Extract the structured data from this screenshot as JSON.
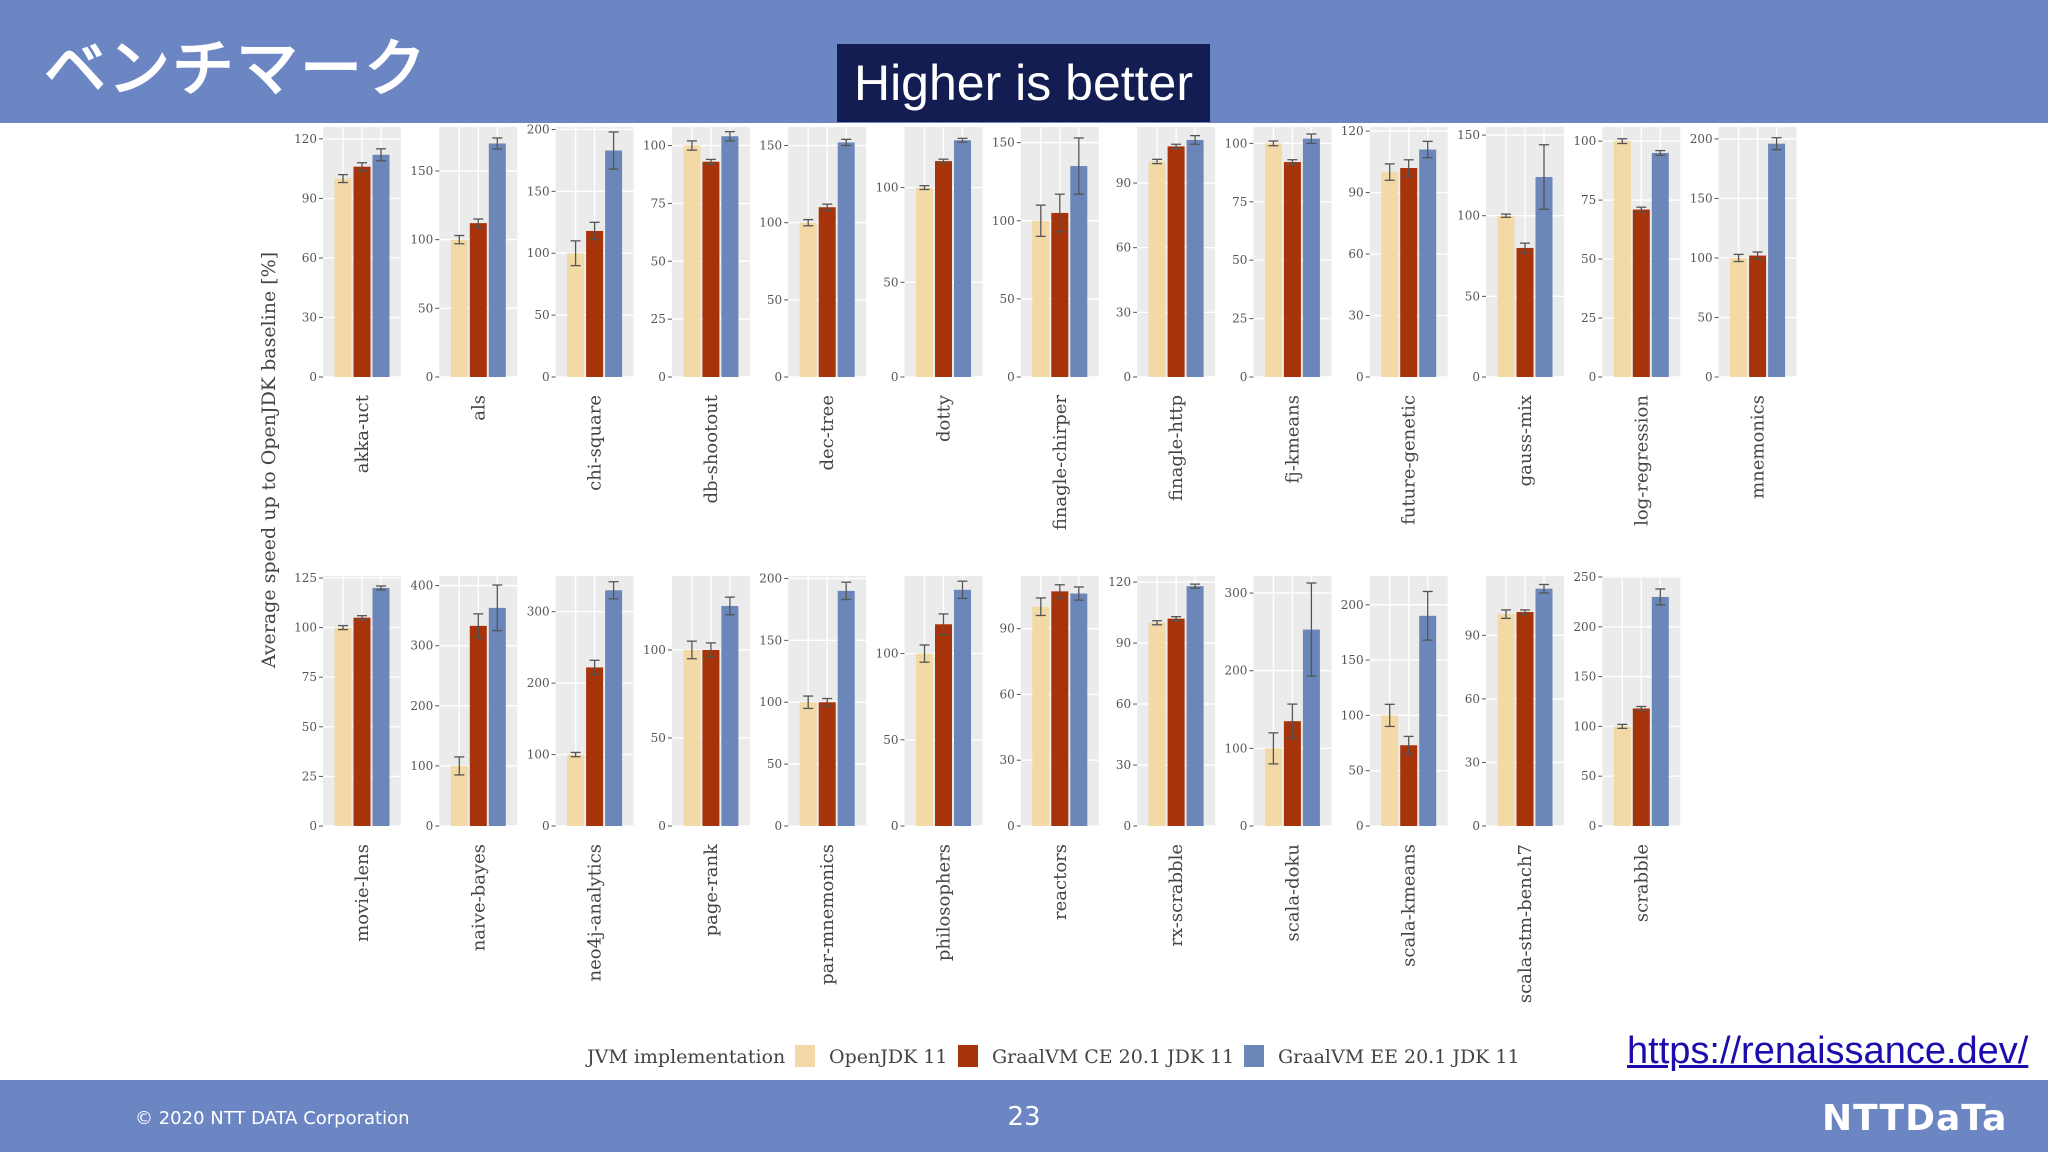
{
  "slide": {
    "title": "ベンチマーク",
    "callout": "Higher is better",
    "url": "https://renaissance.dev/",
    "copyright": "© 2020 NTT DATA Corporation",
    "page_number": "23",
    "logo": "NTTDaTa"
  },
  "colors": {
    "header": "#6b86c3",
    "callout_bg": "#131d52",
    "openjdk": "#f2d9a5",
    "graal_ce": "#a63309",
    "graal_ee": "#6b86b8",
    "panel_bg": "#ebebeb"
  },
  "chart_data": {
    "type": "bar",
    "ylabel": "Average speed up to OpenJDK baseline [%]",
    "legend": {
      "title": "JVM implementation",
      "position": "bottom",
      "entries": [
        "OpenJDK 11",
        "GraalVM CE 20.1 JDK 11",
        "GraalVM EE 20.1 JDK 11"
      ]
    },
    "panels": [
      {
        "name": "akka-uct",
        "ymax": 126,
        "ticks": [
          0,
          30,
          60,
          90,
          120
        ],
        "values": [
          100,
          106,
          112
        ],
        "err": [
          2,
          2,
          3
        ]
      },
      {
        "name": "als",
        "ymax": 182,
        "ticks": [
          0,
          50,
          100,
          150
        ],
        "values": [
          100,
          112,
          170
        ],
        "err": [
          3,
          3,
          4
        ]
      },
      {
        "name": "chi-square",
        "ymax": 202,
        "ticks": [
          0,
          50,
          100,
          150,
          200
        ],
        "values": [
          100,
          118,
          183
        ],
        "err": [
          10,
          7,
          15
        ]
      },
      {
        "name": "db-shootout",
        "ymax": 108,
        "ticks": [
          0,
          25,
          50,
          75,
          100
        ],
        "values": [
          100,
          93,
          104
        ],
        "err": [
          2,
          1,
          2
        ]
      },
      {
        "name": "dec-tree",
        "ymax": 162,
        "ticks": [
          0,
          50,
          100,
          150
        ],
        "values": [
          100,
          110,
          152
        ],
        "err": [
          2,
          2,
          2
        ]
      },
      {
        "name": "dotty",
        "ymax": 132,
        "ticks": [
          0,
          50,
          100
        ],
        "values": [
          100,
          114,
          125
        ],
        "err": [
          1,
          1,
          1
        ]
      },
      {
        "name": "finagle-chirper",
        "ymax": 160,
        "ticks": [
          0,
          50,
          100,
          150
        ],
        "values": [
          100,
          105,
          135
        ],
        "err": [
          10,
          12,
          18
        ]
      },
      {
        "name": "finagle-http",
        "ymax": 116,
        "ticks": [
          0,
          30,
          60,
          90
        ],
        "values": [
          100,
          107,
          110
        ],
        "err": [
          1,
          1,
          2
        ]
      },
      {
        "name": "fj-kmeans",
        "ymax": 107,
        "ticks": [
          0,
          25,
          50,
          75,
          100
        ],
        "values": [
          100,
          92,
          102
        ],
        "err": [
          1,
          1,
          2
        ]
      },
      {
        "name": "future-genetic",
        "ymax": 122,
        "ticks": [
          0,
          30,
          60,
          90,
          120
        ],
        "values": [
          100,
          102,
          111
        ],
        "err": [
          4,
          4,
          4
        ]
      },
      {
        "name": "gauss-mix",
        "ymax": 155,
        "ticks": [
          0,
          50,
          100,
          150
        ],
        "values": [
          100,
          80,
          124
        ],
        "err": [
          1,
          3,
          20
        ]
      },
      {
        "name": "log-regression",
        "ymax": 106,
        "ticks": [
          0,
          25,
          50,
          75,
          100
        ],
        "values": [
          100,
          71,
          95
        ],
        "err": [
          1,
          1,
          1
        ]
      },
      {
        "name": "mnemonics",
        "ymax": 210,
        "ticks": [
          0,
          50,
          100,
          150,
          200
        ],
        "values": [
          100,
          102,
          196
        ],
        "err": [
          3,
          3,
          5
        ]
      },
      {
        "name": "movie-lens",
        "ymax": 126,
        "ticks": [
          0,
          25,
          50,
          75,
          100,
          125
        ],
        "values": [
          100,
          105,
          120
        ],
        "err": [
          1,
          1,
          1
        ]
      },
      {
        "name": "naive-bayes",
        "ymax": 416,
        "ticks": [
          0,
          100,
          200,
          300,
          400
        ],
        "values": [
          100,
          333,
          363
        ],
        "err": [
          15,
          20,
          38
        ]
      },
      {
        "name": "neo4j-analytics",
        "ymax": 350,
        "ticks": [
          0,
          100,
          200,
          300
        ],
        "values": [
          100,
          222,
          330
        ],
        "err": [
          3,
          10,
          12
        ]
      },
      {
        "name": "page-rank",
        "ymax": 142,
        "ticks": [
          0,
          50,
          100
        ],
        "values": [
          100,
          100,
          125
        ],
        "err": [
          5,
          4,
          5
        ]
      },
      {
        "name": "par-mnemonics",
        "ymax": 202,
        "ticks": [
          0,
          50,
          100,
          150,
          200
        ],
        "values": [
          100,
          100,
          190
        ],
        "err": [
          5,
          3,
          7
        ]
      },
      {
        "name": "philosophers",
        "ymax": 145,
        "ticks": [
          0,
          50,
          100
        ],
        "values": [
          100,
          117,
          137
        ],
        "err": [
          5,
          6,
          5
        ]
      },
      {
        "name": "reactors",
        "ymax": 114,
        "ticks": [
          0,
          30,
          60,
          90
        ],
        "values": [
          100,
          107,
          106
        ],
        "err": [
          4,
          3,
          3
        ]
      },
      {
        "name": "rx-scrabble",
        "ymax": 123,
        "ticks": [
          0,
          30,
          60,
          90,
          120
        ],
        "values": [
          100,
          102,
          118
        ],
        "err": [
          1,
          1,
          1
        ]
      },
      {
        "name": "scala-doku",
        "ymax": 322,
        "ticks": [
          0,
          100,
          200,
          300
        ],
        "values": [
          100,
          135,
          253
        ],
        "err": [
          20,
          22,
          60
        ]
      },
      {
        "name": "scala-kmeans",
        "ymax": 226,
        "ticks": [
          0,
          50,
          100,
          150,
          200
        ],
        "values": [
          100,
          73,
          190
        ],
        "err": [
          10,
          8,
          22
        ]
      },
      {
        "name": "scala-stm-bench7",
        "ymax": 118,
        "ticks": [
          0,
          30,
          60,
          90
        ],
        "values": [
          100,
          101,
          112
        ],
        "err": [
          2,
          1,
          2
        ]
      },
      {
        "name": "scrabble",
        "ymax": 251,
        "ticks": [
          0,
          50,
          100,
          150,
          200,
          250
        ],
        "values": [
          100,
          118,
          230
        ],
        "err": [
          2,
          2,
          8
        ]
      }
    ]
  }
}
